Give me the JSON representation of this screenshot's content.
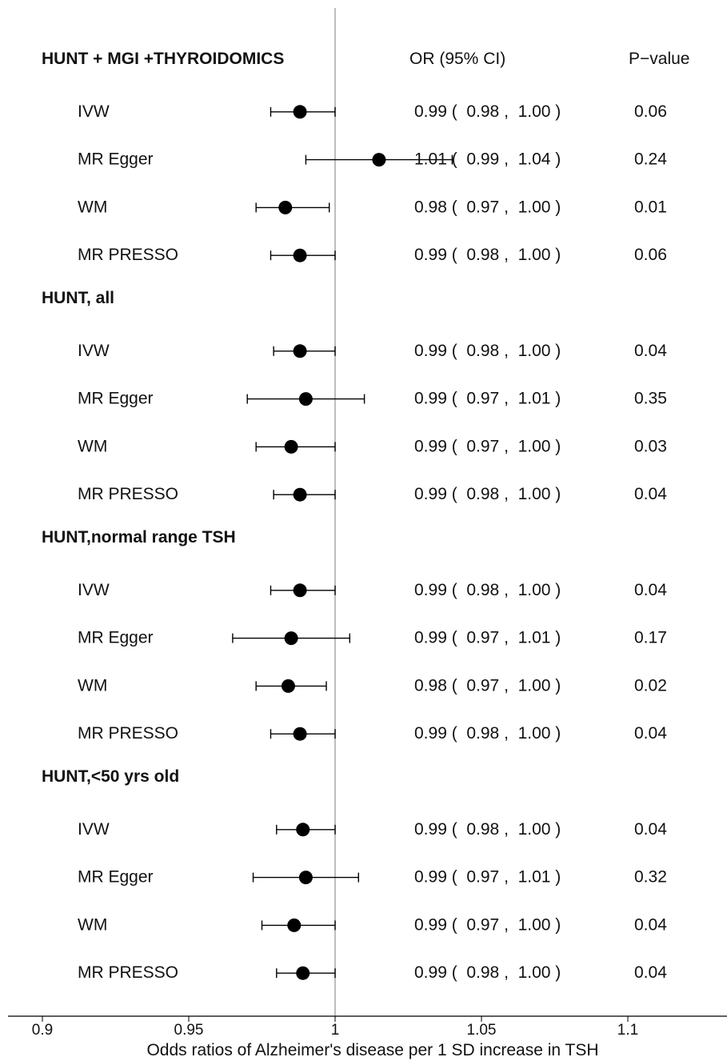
{
  "chart_data": {
    "type": "forest",
    "xlabel": "Odds ratios of Alzheimer's disease per 1 SD increase in TSH",
    "ticks": [
      0.9,
      0.95,
      1,
      1.05,
      1.1
    ],
    "tick_labels": [
      "0.9",
      "0.95",
      "1",
      "1.05",
      "1.1"
    ],
    "reference_line": 1,
    "headers": {
      "or": "OR (95% CI)",
      "p": "P−value"
    },
    "groups": [
      {
        "title": "HUNT + MGI +THYROIDOMICS",
        "rows": [
          {
            "method": "IVW",
            "or": 0.988,
            "lo": 0.978,
            "hi": 1.0,
            "or_text": "0.99 (  0.98 ,  1.00 )",
            "p": "0.06"
          },
          {
            "method": "MR Egger",
            "or": 1.015,
            "lo": 0.99,
            "hi": 1.04,
            "or_text": "1.01 (  0.99 ,  1.04 )",
            "p": "0.24"
          },
          {
            "method": "WM",
            "or": 0.983,
            "lo": 0.973,
            "hi": 0.998,
            "or_text": "0.98 (  0.97 ,  1.00 )",
            "p": "0.01"
          },
          {
            "method": "MR PRESSO",
            "or": 0.988,
            "lo": 0.978,
            "hi": 1.0,
            "or_text": "0.99 (  0.98 ,  1.00 )",
            "p": "0.06"
          }
        ]
      },
      {
        "title": "HUNT, all",
        "rows": [
          {
            "method": "IVW",
            "or": 0.988,
            "lo": 0.979,
            "hi": 1.0,
            "or_text": "0.99 (  0.98 ,  1.00 )",
            "p": "0.04"
          },
          {
            "method": "MR Egger",
            "or": 0.99,
            "lo": 0.97,
            "hi": 1.01,
            "or_text": "0.99 (  0.97 ,  1.01 )",
            "p": "0.35"
          },
          {
            "method": "WM",
            "or": 0.985,
            "lo": 0.973,
            "hi": 1.0,
            "or_text": "0.99 (  0.97 ,  1.00 )",
            "p": "0.03"
          },
          {
            "method": "MR PRESSO",
            "or": 0.988,
            "lo": 0.979,
            "hi": 1.0,
            "or_text": "0.99 (  0.98 ,  1.00 )",
            "p": "0.04"
          }
        ]
      },
      {
        "title": "HUNT,normal range TSH",
        "rows": [
          {
            "method": "IVW",
            "or": 0.988,
            "lo": 0.978,
            "hi": 1.0,
            "or_text": "0.99 (  0.98 ,  1.00 )",
            "p": "0.04"
          },
          {
            "method": "MR Egger",
            "or": 0.985,
            "lo": 0.965,
            "hi": 1.005,
            "or_text": "0.99 (  0.97 ,  1.01 )",
            "p": "0.17"
          },
          {
            "method": "WM",
            "or": 0.984,
            "lo": 0.973,
            "hi": 0.997,
            "or_text": "0.98 (  0.97 ,  1.00 )",
            "p": "0.02"
          },
          {
            "method": "MR PRESSO",
            "or": 0.988,
            "lo": 0.978,
            "hi": 1.0,
            "or_text": "0.99 (  0.98 ,  1.00 )",
            "p": "0.04"
          }
        ]
      },
      {
        "title": "HUNT,<50 yrs old",
        "rows": [
          {
            "method": "IVW",
            "or": 0.989,
            "lo": 0.98,
            "hi": 1.0,
            "or_text": "0.99 (  0.98 ,  1.00 )",
            "p": "0.04"
          },
          {
            "method": "MR Egger",
            "or": 0.99,
            "lo": 0.972,
            "hi": 1.008,
            "or_text": "0.99 (  0.97 ,  1.01 )",
            "p": "0.32"
          },
          {
            "method": "WM",
            "or": 0.986,
            "lo": 0.975,
            "hi": 1.0,
            "or_text": "0.99 (  0.97 ,  1.00 )",
            "p": "0.04"
          },
          {
            "method": "MR PRESSO",
            "or": 0.989,
            "lo": 0.98,
            "hi": 1.0,
            "or_text": "0.99 (  0.98 ,  1.00 )",
            "p": "0.04"
          }
        ]
      }
    ]
  }
}
